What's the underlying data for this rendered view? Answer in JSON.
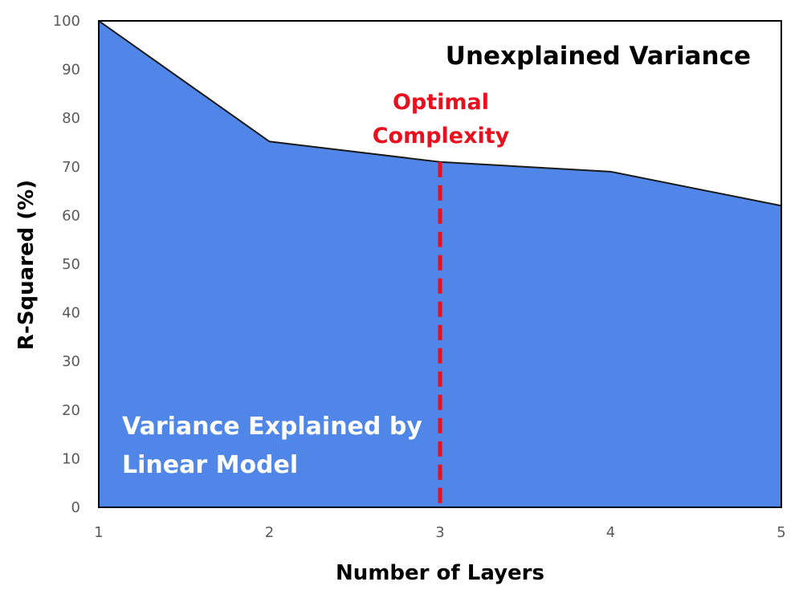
{
  "chart_data": {
    "type": "area",
    "x": [
      1,
      2,
      3,
      4,
      5
    ],
    "series": [
      {
        "values": [
          100,
          75.2,
          71,
          69,
          62
        ]
      }
    ],
    "xlabel": "Number of Layers",
    "ylabel": "R-Squared (%)",
    "xlim": [
      1,
      5
    ],
    "ylim": [
      0,
      100
    ],
    "x_ticks": [
      "1",
      "2",
      "3",
      "4",
      "5"
    ],
    "y_ticks": [
      "0",
      "10",
      "20",
      "30",
      "40",
      "50",
      "60",
      "70",
      "80",
      "90",
      "100"
    ],
    "grid": false,
    "optimal_complexity_x": 3,
    "annotations": {
      "unexplained": "Unexplained Variance",
      "optimal_line1": "Optimal",
      "optimal_line2": "Complexity",
      "explained_line1": "Variance Explained by",
      "explained_line2": "Linear Model"
    },
    "colors": {
      "area_fill": "#4F86E8",
      "area_outline": "#1a1a1a",
      "optimal_line": "#E8101E",
      "annotation_red": "#E8101E",
      "annotation_dark": "#000000",
      "annotation_light": "#ffffff"
    }
  }
}
